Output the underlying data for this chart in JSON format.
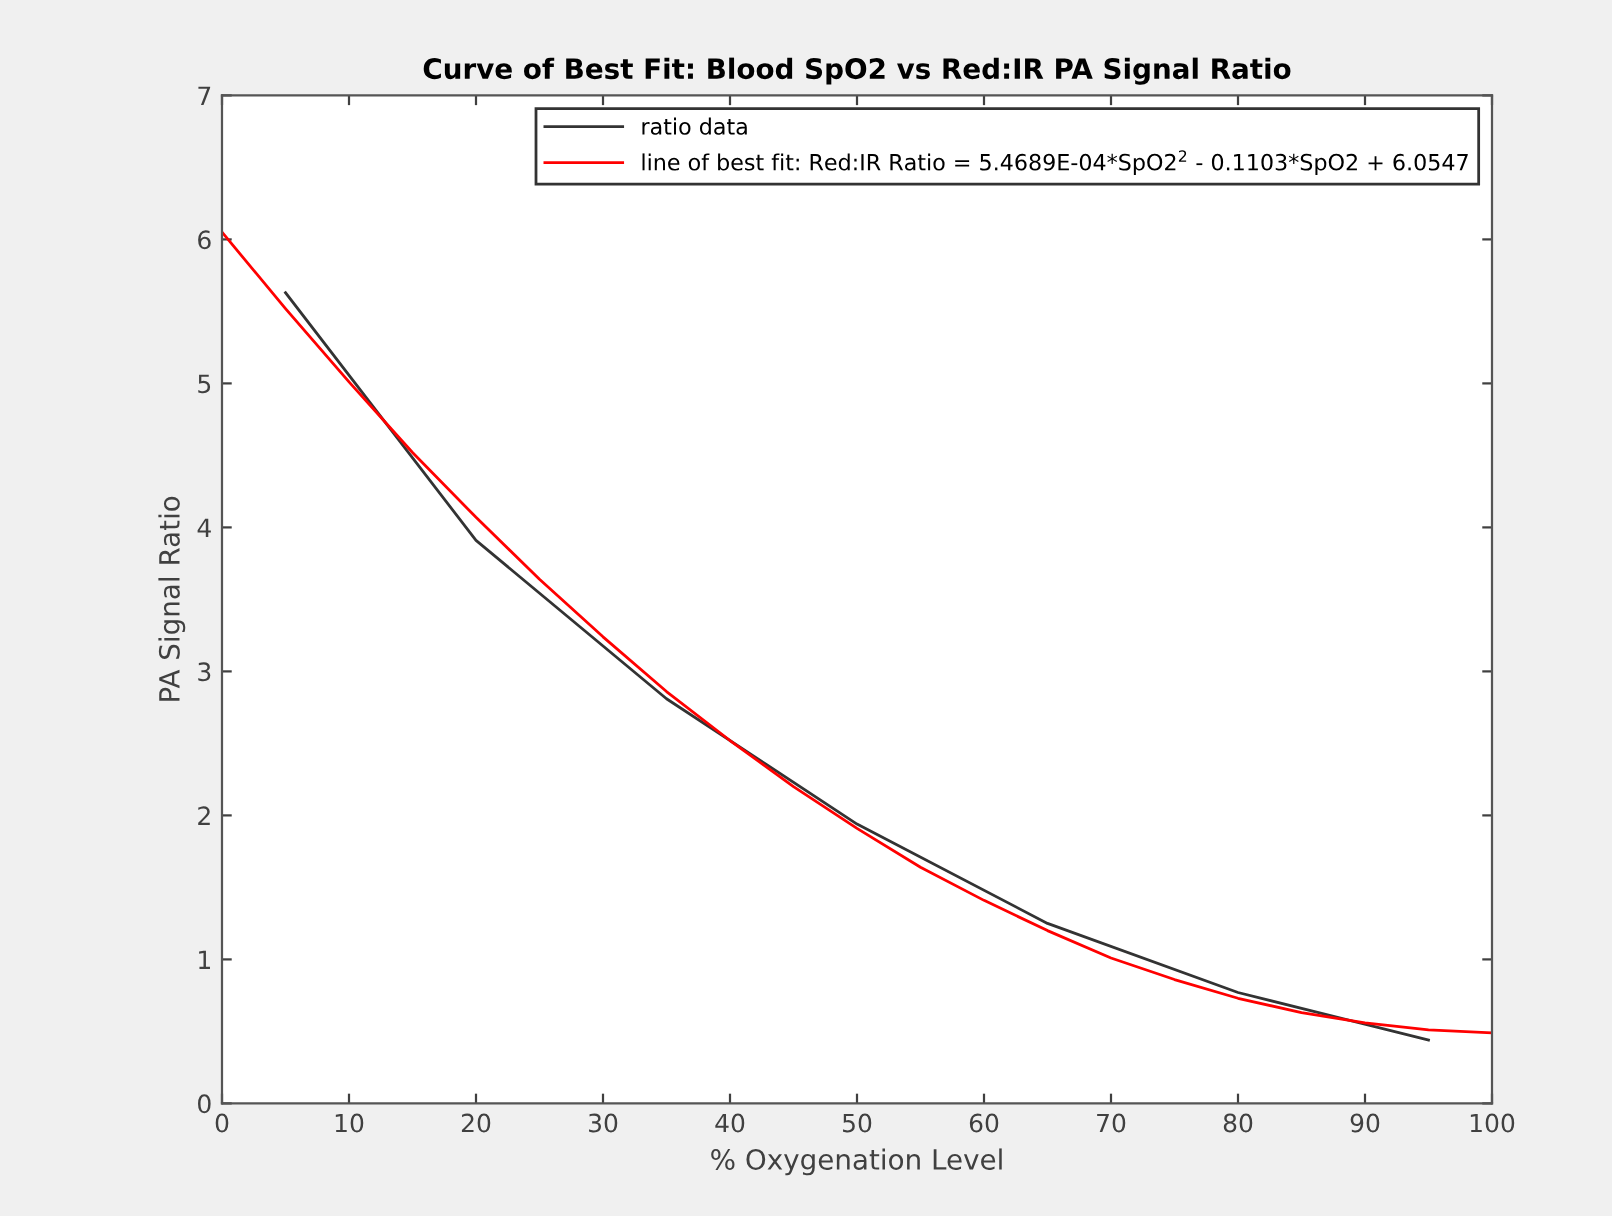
{
  "chart_data": {
    "type": "line",
    "title": "Curve of Best Fit: Blood SpO2 vs Red:IR PA Signal Ratio",
    "xlabel": "% Oxygenation Level",
    "ylabel": "PA Signal Ratio",
    "series": [
      {
        "name": "ratio data",
        "color": "#333333",
        "x": [
          5,
          20,
          35,
          50,
          65,
          80,
          95
        ],
        "values": [
          5.63,
          3.91,
          2.81,
          1.94,
          1.25,
          0.77,
          0.44
        ]
      },
      {
        "name": "line of best fit: Red:IR Ratio = 5.4689E-04*SpO2$^{2}$ - 0.1103*SpO2 + 6.0547",
        "color": "#ff0000",
        "x": [
          0,
          5,
          10,
          15,
          20,
          25,
          30,
          35,
          40,
          45,
          50,
          55,
          60,
          65,
          70,
          75,
          80,
          85,
          90,
          95,
          100
        ],
        "values": [
          6.05,
          5.52,
          5.01,
          4.52,
          4.07,
          3.64,
          3.24,
          2.86,
          2.52,
          2.2,
          1.91,
          1.64,
          1.41,
          1.2,
          1.01,
          0.86,
          0.73,
          0.63,
          0.56,
          0.51,
          0.49
        ]
      }
    ],
    "xlim": [
      0,
      100
    ],
    "xticks": [
      0,
      10,
      20,
      30,
      40,
      50,
      60,
      70,
      80,
      90,
      100
    ],
    "ylim": [
      0,
      7
    ],
    "yticks": [
      0,
      1,
      2,
      3,
      4,
      5,
      6,
      7
    ],
    "grid": false,
    "legend": "top right",
    "marker": "none",
    "line_style": "solid"
  }
}
